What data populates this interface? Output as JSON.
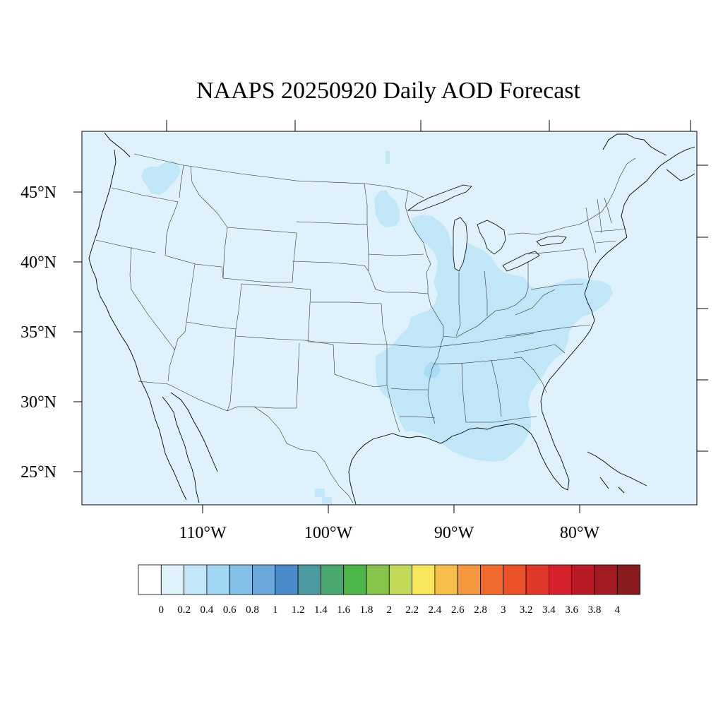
{
  "title": "NAAPS 20250920 Daily AOD Forecast",
  "map": {
    "background_value_color": "#dff2fb",
    "aod_patch_color": "#c0e6f8",
    "aod_peak_color": "#a6dcf4",
    "lat_labels": [
      "45°N",
      "40°N",
      "35°N",
      "30°N",
      "25°N"
    ],
    "lon_labels": [
      "110°W",
      "100°W",
      "90°W",
      "80°W"
    ]
  },
  "colorbar": {
    "colors": [
      "#ffffff",
      "#dff2fb",
      "#c0e6f8",
      "#a0d8f3",
      "#84bfe6",
      "#6aa8dc",
      "#4a8ccb",
      "#4a9a9f",
      "#48a86e",
      "#4cb548",
      "#86c34a",
      "#c2d957",
      "#f8e65a",
      "#f8be4a",
      "#f7973d",
      "#f26b2c",
      "#ea5129",
      "#e03728",
      "#d4212b",
      "#b91b24",
      "#a31a22",
      "#8b1a1d"
    ],
    "labels": [
      "0",
      "0.2",
      "0.4",
      "0.6",
      "0.8",
      "1",
      "1.2",
      "1.4",
      "1.6",
      "1.8",
      "2",
      "2.2",
      "2.4",
      "2.6",
      "2.8",
      "3",
      "3.2",
      "3.4",
      "3.6",
      "3.8",
      "4"
    ]
  }
}
